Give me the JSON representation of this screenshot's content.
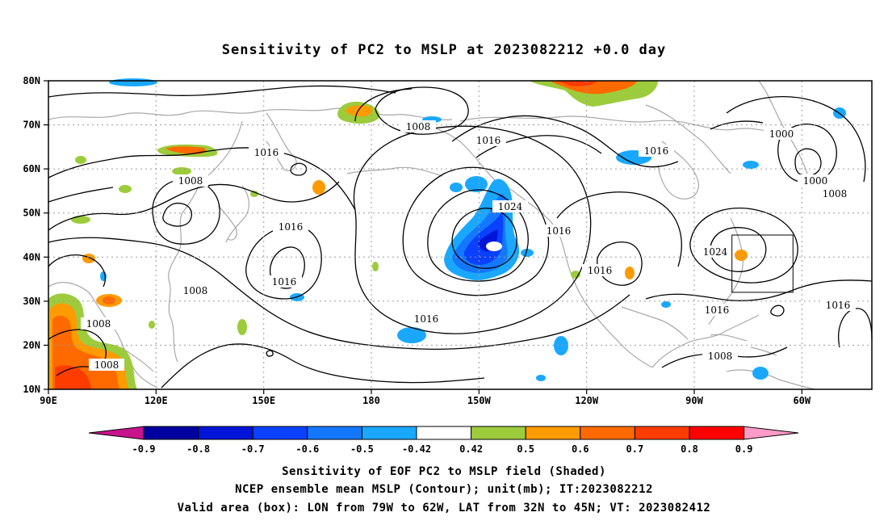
{
  "title": "Sensitivity of PC2 to MSLP at 2023082212 +0.0 day",
  "lat_labels": [
    "80N",
    "70N",
    "60N",
    "50N",
    "40N",
    "30N",
    "20N",
    "10N"
  ],
  "lon_labels": [
    "90E",
    "120E",
    "150E",
    "180",
    "150W",
    "120W",
    "90W",
    "60W"
  ],
  "contour_labels": [
    {
      "text": "1008"
    },
    {
      "text": "1016"
    },
    {
      "text": "1016"
    },
    {
      "text": "1016"
    },
    {
      "text": "1000"
    },
    {
      "text": "1008"
    },
    {
      "text": "1000"
    },
    {
      "text": "1008"
    },
    {
      "text": "1016"
    },
    {
      "text": "1016"
    },
    {
      "text": "1008"
    },
    {
      "text": "1024"
    },
    {
      "text": "1016"
    },
    {
      "text": "1016"
    },
    {
      "text": "1024"
    },
    {
      "text": "1016"
    },
    {
      "text": "1016"
    },
    {
      "text": "1016"
    },
    {
      "text": "1008"
    },
    {
      "text": "1008"
    },
    {
      "text": "1008"
    }
  ],
  "colorbar": {
    "labels": [
      "-0.9",
      "-0.8",
      "-0.7",
      "-0.6",
      "-0.5",
      "-0.42",
      "0.42",
      "0.5",
      "0.6",
      "0.7",
      "0.8",
      "0.9"
    ],
    "colors": [
      "#0000a0",
      "#0015d8",
      "#0a40ff",
      "#1478ff",
      "#1aa8ff",
      "#ffffff",
      "#9ccc3c",
      "#ff9b00",
      "#ff6a00",
      "#ff3c00",
      "#ff0000"
    ],
    "low_color": "#c8148c",
    "high_color": "#ff9bc8"
  },
  "valid_box": {
    "lon_from": "79W",
    "lon_to": "62W",
    "lat_from": "32N",
    "lat_to": "45N"
  },
  "captions": [
    "Sensitivity of EOF PC2 to MSLP field (Shaded)",
    "NCEP ensemble mean MSLP (Contour); unit(mb); IT:2023082212",
    "Valid area (box): LON from 79W to 62W, LAT from 32N to 45N; VT: 2023082412"
  ]
}
